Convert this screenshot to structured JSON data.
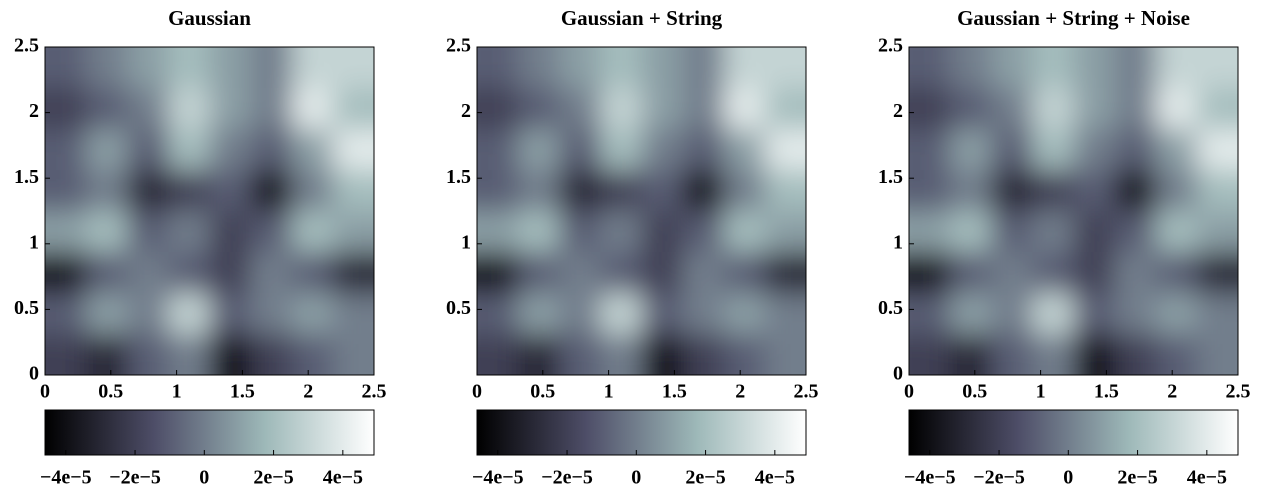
{
  "chart_data": [
    {
      "type": "heatmap",
      "title": "Gaussian",
      "xlim": [
        0,
        2.5
      ],
      "ylim": [
        0,
        2.5
      ],
      "xticks": [
        0,
        0.5,
        1,
        1.5,
        2,
        2.5
      ],
      "yticks": [
        0,
        0.5,
        1,
        1.5,
        2,
        2.5
      ],
      "z": [
        [
          -1e-05,
          0,
          1e-05,
          2e-05,
          1e-05,
          0,
          3e-05,
          3e-05
        ],
        [
          -2e-05,
          -1e-05,
          0,
          3e-05,
          1e-05,
          0,
          4e-05,
          2e-05
        ],
        [
          -1e-05,
          1e-05,
          -1e-05,
          2e-05,
          0,
          -1e-05,
          1e-05,
          4e-05
        ],
        [
          -1e-05,
          0,
          -3e-05,
          -2e-05,
          -1e-05,
          -4e-05,
          0,
          2e-05
        ],
        [
          1e-05,
          2e-05,
          -1e-05,
          0,
          -2e-05,
          -1e-05,
          2e-05,
          1e-05
        ],
        [
          -4e-05,
          -1e-05,
          0,
          -1e-05,
          -2e-05,
          0,
          -1e-05,
          -3e-05
        ],
        [
          -1e-05,
          1e-05,
          0,
          3e-05,
          -1e-05,
          0,
          1e-05,
          0
        ],
        [
          -2e-05,
          -3e-05,
          -1e-05,
          0,
          -4e-05,
          -2e-05,
          -1e-05,
          0
        ]
      ],
      "colormap": [
        "#000000",
        "#4e4e68",
        "#9db8b8",
        "#ffffff"
      ],
      "clim": [
        -4.6e-05,
        4.9e-05
      ],
      "cticks": [
        {
          "value": -4e-05,
          "label": "−4e−5"
        },
        {
          "value": -2e-05,
          "label": "−2e−5"
        },
        0,
        {
          "value": 2e-05,
          "label": "2e−5"
        },
        {
          "value": 4e-05,
          "label": "4e−5"
        }
      ]
    },
    {
      "type": "heatmap",
      "title": "Gaussian + String",
      "xlim": [
        0,
        2.5
      ],
      "ylim": [
        0,
        2.5
      ],
      "xticks": [
        0,
        0.5,
        1,
        1.5,
        2,
        2.5
      ],
      "yticks": [
        0.5,
        1,
        1.5,
        2,
        2.5
      ],
      "z": [
        [
          -1e-05,
          0,
          1e-05,
          2e-05,
          1e-05,
          0,
          3e-05,
          3e-05
        ],
        [
          -2e-05,
          -1e-05,
          0,
          3e-05,
          1e-05,
          0,
          4e-05,
          2e-05
        ],
        [
          -1e-05,
          1e-05,
          -1e-05,
          2e-05,
          0,
          -1e-05,
          1e-05,
          4e-05
        ],
        [
          -1e-05,
          0,
          -3e-05,
          -2e-05,
          -1e-05,
          -4e-05,
          0,
          2e-05
        ],
        [
          1e-05,
          2e-05,
          -1e-05,
          0,
          -2e-05,
          -1e-05,
          2e-05,
          1e-05
        ],
        [
          -4e-05,
          -1e-05,
          0,
          -1e-05,
          -2e-05,
          0,
          -1e-05,
          -3e-05
        ],
        [
          -1e-05,
          1e-05,
          0,
          3e-05,
          -1e-05,
          0,
          1e-05,
          0
        ],
        [
          -2e-05,
          -3e-05,
          -1e-05,
          0,
          -4e-05,
          -2e-05,
          -1e-05,
          0
        ]
      ],
      "colormap": [
        "#000000",
        "#4e4e68",
        "#9db8b8",
        "#ffffff"
      ],
      "clim": [
        -4.6e-05,
        4.9e-05
      ],
      "cticks": [
        {
          "value": -4e-05,
          "label": "−4e−5"
        },
        {
          "value": -2e-05,
          "label": "−2e−5"
        },
        0,
        {
          "value": 2e-05,
          "label": "2e−5"
        },
        {
          "value": 4e-05,
          "label": "4e−5"
        }
      ]
    },
    {
      "type": "heatmap",
      "title": "Gaussian + String + Noise",
      "xlim": [
        0,
        2.5
      ],
      "ylim": [
        0,
        2.5
      ],
      "xticks": [
        0,
        0.5,
        1,
        1.5,
        2,
        2.5
      ],
      "yticks": [
        0,
        0.5,
        1,
        1.5,
        2,
        2.5
      ],
      "z": [
        [
          -1e-05,
          0,
          1e-05,
          2e-05,
          1e-05,
          0,
          3e-05,
          3e-05
        ],
        [
          -2e-05,
          -1e-05,
          0,
          3e-05,
          1e-05,
          0,
          4e-05,
          2e-05
        ],
        [
          -1e-05,
          1e-05,
          -1e-05,
          2e-05,
          0,
          -1e-05,
          1e-05,
          4e-05
        ],
        [
          -1e-05,
          0,
          -3e-05,
          -2e-05,
          -1e-05,
          -4e-05,
          0,
          2e-05
        ],
        [
          1e-05,
          2e-05,
          -1e-05,
          0,
          -2e-05,
          -1e-05,
          2e-05,
          1e-05
        ],
        [
          -4e-05,
          -1e-05,
          0,
          -1e-05,
          -2e-05,
          0,
          -1e-05,
          -3e-05
        ],
        [
          -1e-05,
          1e-05,
          0,
          3e-05,
          -1e-05,
          0,
          1e-05,
          0
        ],
        [
          -2e-05,
          -3e-05,
          -1e-05,
          0,
          -4e-05,
          -2e-05,
          -1e-05,
          0
        ]
      ],
      "colormap": [
        "#000000",
        "#4e4e68",
        "#9db8b8",
        "#ffffff"
      ],
      "clim": [
        -4.6e-05,
        4.9e-05
      ],
      "cticks": [
        {
          "value": -4e-05,
          "label": "−4e−5"
        },
        {
          "value": -2e-05,
          "label": "−2e−5"
        },
        0,
        {
          "value": 2e-05,
          "label": "2e−5"
        },
        {
          "value": 4e-05,
          "label": "4e−5"
        }
      ]
    }
  ]
}
